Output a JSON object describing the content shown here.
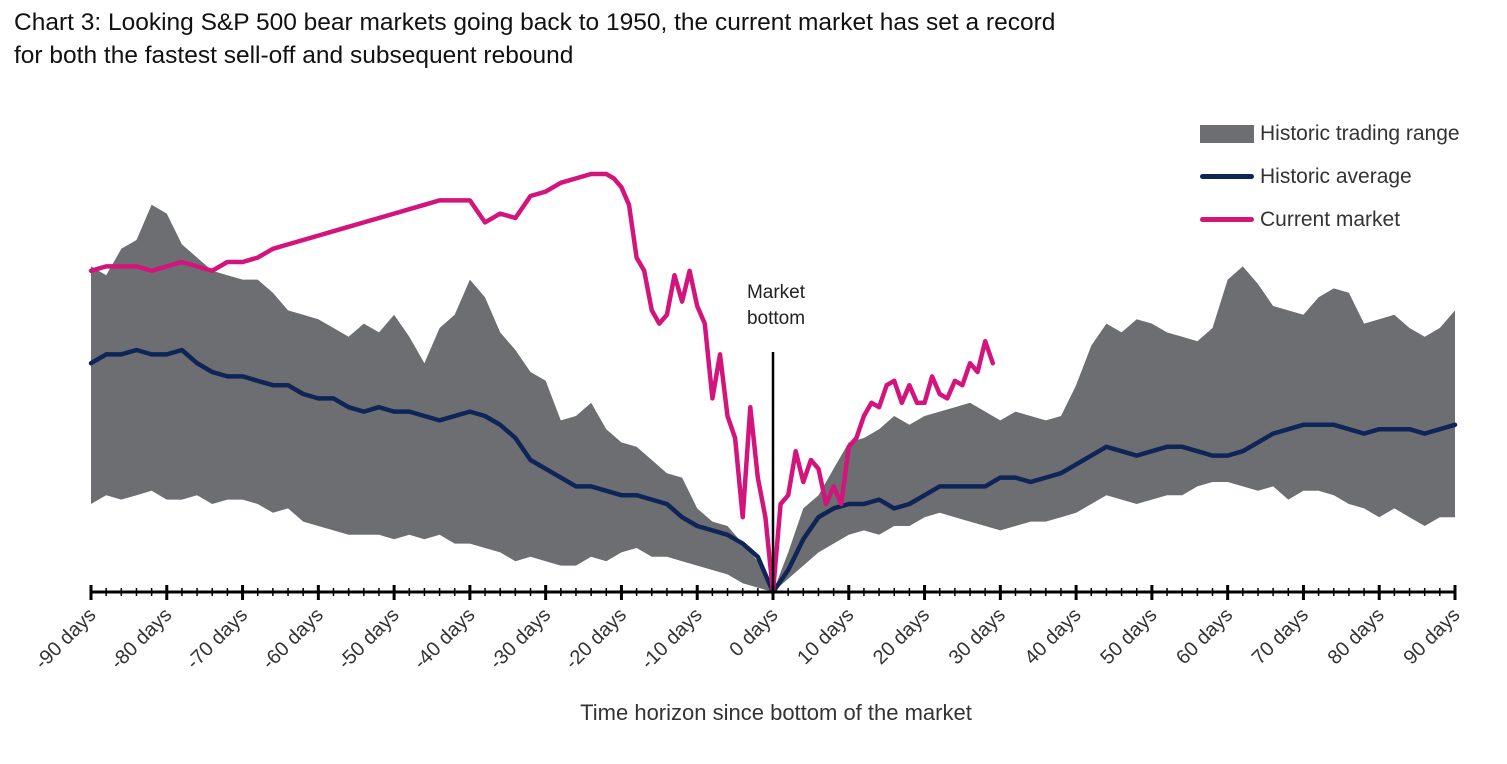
{
  "title_lines": [
    "Chart 3: Looking S&P 500 bear markets going back to 1950, the current market has set a record",
    "for both the fastest sell-off and subsequent rebound"
  ],
  "colors": {
    "band": "#6d6e71",
    "average": "#0f2557",
    "current": "#d4147d",
    "axis": "#000000"
  },
  "legend": [
    {
      "label": "Historic trading range",
      "kind": "band"
    },
    {
      "label": "Historic average",
      "kind": "average"
    },
    {
      "label": "Current market",
      "kind": "current"
    }
  ],
  "annotation": {
    "line1": "Market",
    "line2": "bottom",
    "x": 0
  },
  "chart_data": {
    "type": "line",
    "xlabel": "Time horizon since bottom of the market",
    "ylabel": "",
    "xlim": [
      -90,
      90
    ],
    "ylim": [
      0,
      100
    ],
    "grid": false,
    "legend_position": "top-right",
    "x_tick_labels": [
      "-90 days",
      "-80 days",
      "-70 days",
      "-60 days",
      "-50 days",
      "-40 days",
      "-30 days",
      "-20 days",
      "-10 days",
      "0 days",
      "10 days",
      "20 days",
      "30 days",
      "40 days",
      "50 days",
      "60 days",
      "70 days",
      "80 days",
      "90 days"
    ],
    "x_ticks": [
      -90,
      -80,
      -70,
      -60,
      -50,
      -40,
      -30,
      -20,
      -10,
      0,
      10,
      20,
      30,
      40,
      50,
      60,
      70,
      80,
      90
    ],
    "x_minor_step": 2,
    "series": [
      {
        "name": "Historic trading range",
        "kind": "band",
        "x": [
          -90,
          -88,
          -86,
          -84,
          -82,
          -80,
          -78,
          -76,
          -74,
          -72,
          -70,
          -68,
          -66,
          -64,
          -62,
          -60,
          -58,
          -56,
          -54,
          -52,
          -50,
          -48,
          -46,
          -44,
          -42,
          -40,
          -38,
          -36,
          -34,
          -32,
          -30,
          -28,
          -26,
          -24,
          -22,
          -20,
          -18,
          -16,
          -14,
          -12,
          -10,
          -8,
          -6,
          -4,
          -2,
          0,
          2,
          4,
          6,
          8,
          10,
          12,
          14,
          16,
          18,
          20,
          22,
          24,
          26,
          28,
          30,
          32,
          34,
          36,
          38,
          40,
          42,
          44,
          46,
          48,
          50,
          52,
          54,
          56,
          58,
          60,
          62,
          64,
          66,
          68,
          70,
          72,
          74,
          76,
          78,
          80,
          82,
          84,
          86,
          88,
          90
        ],
        "upper": [
          74,
          72,
          78,
          80,
          88,
          86,
          79,
          76,
          73,
          72,
          71,
          71,
          68,
          64,
          63,
          62,
          60,
          58,
          61,
          59,
          63,
          58,
          52,
          60,
          63,
          71,
          67,
          59,
          55,
          50,
          48,
          39,
          40,
          43,
          37,
          34,
          33,
          30,
          27,
          26,
          19,
          16,
          15,
          11,
          7,
          0,
          9,
          19,
          22,
          28,
          34,
          35,
          37,
          40,
          38,
          40,
          41,
          42,
          43,
          41,
          39,
          41,
          40,
          39,
          40,
          47,
          56,
          61,
          59,
          62,
          61,
          59,
          58,
          57,
          60,
          71,
          74,
          70,
          65,
          64,
          63,
          67,
          69,
          68,
          61,
          62,
          63,
          60,
          58,
          60,
          64
        ],
        "lower": [
          20,
          22,
          21,
          22,
          23,
          21,
          21,
          22,
          20,
          21,
          21,
          20,
          18,
          19,
          16,
          15,
          14,
          13,
          13,
          13,
          12,
          13,
          12,
          13,
          11,
          11,
          10,
          9,
          7,
          8,
          7,
          6,
          6,
          8,
          7,
          9,
          10,
          8,
          8,
          7,
          6,
          5,
          4,
          2,
          1,
          0,
          3,
          6,
          9,
          11,
          13,
          14,
          13,
          15,
          15,
          17,
          18,
          17,
          16,
          15,
          14,
          15,
          16,
          16,
          17,
          18,
          20,
          22,
          21,
          20,
          21,
          22,
          22,
          24,
          25,
          25,
          24,
          23,
          24,
          21,
          23,
          23,
          22,
          20,
          19,
          17,
          19,
          17,
          15,
          17,
          17
        ]
      },
      {
        "name": "Historic average",
        "kind": "line",
        "x": [
          -90,
          -88,
          -86,
          -84,
          -82,
          -80,
          -78,
          -76,
          -74,
          -72,
          -70,
          -68,
          -66,
          -64,
          -62,
          -60,
          -58,
          -56,
          -54,
          -52,
          -50,
          -48,
          -46,
          -44,
          -42,
          -40,
          -38,
          -36,
          -34,
          -32,
          -30,
          -28,
          -26,
          -24,
          -22,
          -20,
          -18,
          -16,
          -14,
          -12,
          -10,
          -8,
          -6,
          -4,
          -2,
          0,
          2,
          4,
          6,
          8,
          10,
          12,
          14,
          16,
          18,
          20,
          22,
          24,
          26,
          28,
          30,
          32,
          34,
          36,
          38,
          40,
          42,
          44,
          46,
          48,
          50,
          52,
          54,
          56,
          58,
          60,
          62,
          64,
          66,
          68,
          70,
          72,
          74,
          76,
          78,
          80,
          82,
          84,
          86,
          88,
          90
        ],
        "values": [
          52,
          54,
          54,
          55,
          54,
          54,
          55,
          52,
          50,
          49,
          49,
          48,
          47,
          47,
          45,
          44,
          44,
          42,
          41,
          42,
          41,
          41,
          40,
          39,
          40,
          41,
          40,
          38,
          35,
          30,
          28,
          26,
          24,
          24,
          23,
          22,
          22,
          21,
          20,
          17,
          15,
          14,
          13,
          11,
          8,
          0,
          5,
          12,
          17,
          19,
          20,
          20,
          21,
          19,
          20,
          22,
          24,
          24,
          24,
          24,
          26,
          26,
          25,
          26,
          27,
          29,
          31,
          33,
          32,
          31,
          32,
          33,
          33,
          32,
          31,
          31,
          32,
          34,
          36,
          37,
          38,
          38,
          38,
          37,
          36,
          37,
          37,
          37,
          36,
          37,
          38
        ]
      },
      {
        "name": "Current market",
        "kind": "line",
        "x": [
          -90,
          -88,
          -86,
          -84,
          -82,
          -80,
          -78,
          -76,
          -74,
          -72,
          -70,
          -68,
          -66,
          -64,
          -62,
          -60,
          -58,
          -56,
          -54,
          -52,
          -50,
          -48,
          -46,
          -44,
          -42,
          -40,
          -38,
          -36,
          -34,
          -32,
          -30,
          -28,
          -26,
          -24,
          -22,
          -21,
          -20,
          -19,
          -18,
          -17,
          -16,
          -15,
          -14,
          -13,
          -12,
          -11,
          -10,
          -9,
          -8,
          -7,
          -6,
          -5,
          -4,
          -3,
          -2,
          -1,
          0,
          1,
          2,
          3,
          4,
          5,
          6,
          7,
          8,
          9,
          10,
          11,
          12,
          13,
          14,
          15,
          16,
          17,
          18,
          19,
          20,
          21,
          22,
          23,
          24,
          25,
          26,
          27,
          28,
          29
        ],
        "values": [
          73,
          74,
          74,
          74,
          73,
          74,
          75,
          74,
          73,
          75,
          75,
          76,
          78,
          79,
          80,
          81,
          82,
          83,
          84,
          85,
          86,
          87,
          88,
          89,
          89,
          89,
          84,
          86,
          85,
          90,
          91,
          93,
          94,
          95,
          95,
          94,
          92,
          88,
          76,
          73,
          64,
          61,
          63,
          72,
          66,
          73,
          65,
          61,
          44,
          54,
          40,
          35,
          17,
          42,
          26,
          17,
          0,
          20,
          22,
          32,
          25,
          30,
          28,
          20,
          24,
          20,
          33,
          35,
          40,
          43,
          42,
          47,
          48,
          43,
          47,
          43,
          43,
          49,
          45,
          44,
          48,
          47,
          52,
          50,
          57,
          52
        ]
      }
    ]
  }
}
